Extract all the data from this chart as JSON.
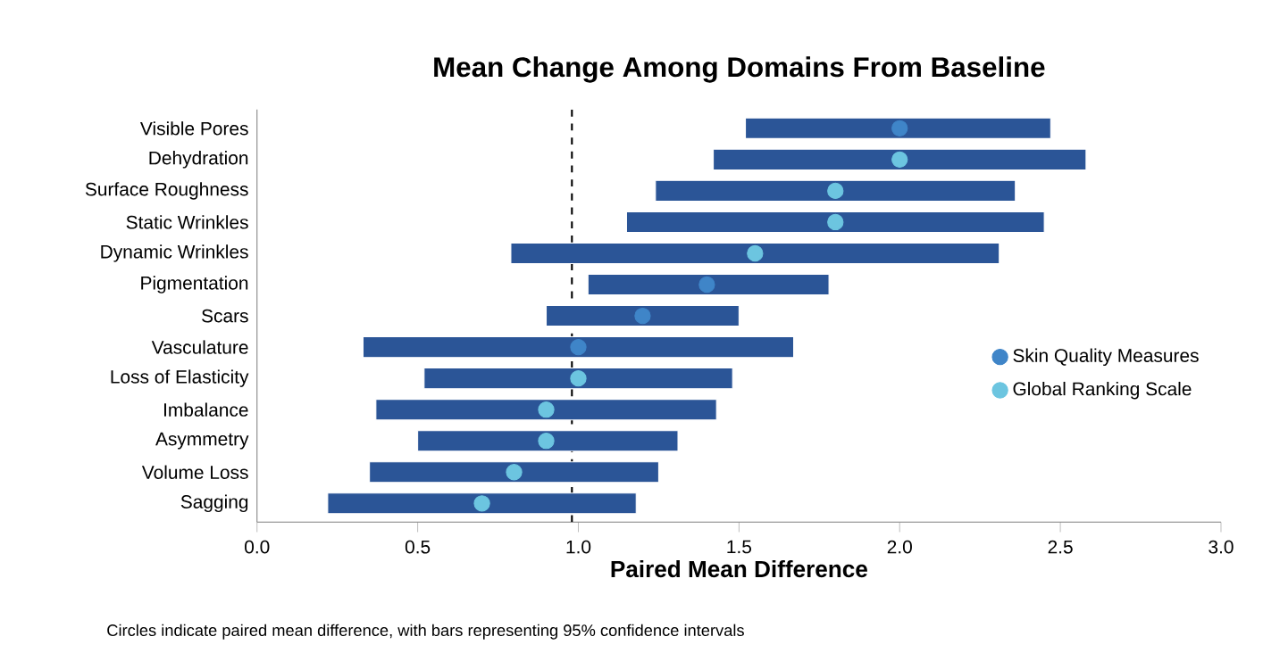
{
  "chart_data": {
    "type": "bar",
    "orientation": "horizontal",
    "title": "Mean Change Among Domains From Baseline",
    "xlabel": "Paired Mean Difference",
    "categories": [
      "Visible Pores",
      "Dehydration",
      "Surface Roughness",
      "Static Wrinkles",
      "Dynamic Wrinkles",
      "Pigmentation",
      "Scars",
      "Vasculature",
      "Loss of Elasticity",
      "Imbalance",
      "Asymmetry",
      "Volume Loss",
      "Sagging"
    ],
    "series": [
      {
        "type": "bar",
        "color": "#2b5597",
        "base": [
          1.52,
          1.42,
          1.24,
          1.15,
          0.79,
          1.03,
          0.9,
          0.33,
          0.52,
          0.37,
          0.5,
          0.35,
          0.22
        ],
        "values": [
          0.95,
          1.16,
          1.12,
          1.3,
          1.52,
          0.75,
          0.6,
          1.34,
          0.96,
          1.06,
          0.81,
          0.9,
          0.96
        ]
      },
      {
        "type": "scatter",
        "name": "Skin Quality Measures",
        "color": "#3f85c8",
        "values": [
          2.0,
          null,
          null,
          null,
          null,
          1.4,
          1.2,
          1.0,
          null,
          null,
          null,
          null,
          null
        ]
      },
      {
        "type": "scatter",
        "name": "Global Ranking Scale",
        "color": "#6cc5e0",
        "values": [
          null,
          2.0,
          1.8,
          1.8,
          1.55,
          null,
          null,
          null,
          1.0,
          0.9,
          0.9,
          0.8,
          0.7
        ]
      }
    ],
    "marker": "circle",
    "xlim": [
      0,
      3
    ],
    "xticks": [
      {
        "value": 0,
        "label": "0.0"
      },
      {
        "value": 0.5,
        "label": "0.5"
      },
      {
        "value": 1,
        "label": "1.0"
      },
      {
        "value": 1.5,
        "label": "1.5"
      },
      {
        "value": 2,
        "label": "2.0"
      },
      {
        "value": 2.5,
        "label": "2.5"
      },
      {
        "value": 3,
        "label": "3.0"
      }
    ],
    "ref_lines": [
      {
        "axis": "x",
        "value": 0.98,
        "color": "#000000",
        "line_style": "dashed"
      }
    ],
    "legend": "right",
    "annotations": [
      "Circles indicate paired mean difference, with bars representing 95% confidence intervals"
    ]
  }
}
